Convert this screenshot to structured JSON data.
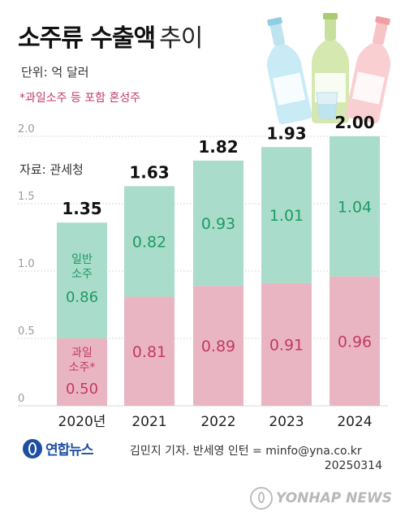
{
  "header": {
    "title_bold": "소주류 수출액",
    "title_light": "추이",
    "unit": "단위: 억 달러",
    "note": "*과일소주 등 포함 혼성주",
    "source": "자료: 관세청"
  },
  "chart_data": {
    "type": "bar",
    "stacked": true,
    "categories": [
      "2020년",
      "2021",
      "2022",
      "2023",
      "2024"
    ],
    "series": [
      {
        "name": "과일 소주*",
        "values": [
          0.5,
          0.81,
          0.89,
          0.91,
          0.96
        ],
        "color": "#eab5c3",
        "label_color": "#c23a66"
      },
      {
        "name": "일반 소주",
        "values": [
          0.86,
          0.82,
          0.93,
          1.01,
          1.04
        ],
        "color": "#a9dccb",
        "label_color": "#1f9a63"
      }
    ],
    "value_labels": {
      "fruit": [
        "0.50",
        "0.81",
        "0.89",
        "0.91",
        "0.96"
      ],
      "regular": [
        "0.86",
        "0.82",
        "0.93",
        "1.01",
        "1.04"
      ]
    },
    "totals": [
      "1.35",
      "1.63",
      "1.82",
      "1.93",
      "2.00"
    ],
    "y_ticks": [
      {
        "value": 0,
        "label": "0"
      },
      {
        "value": 0.5,
        "label": "0.5"
      },
      {
        "value": 1.0,
        "label": "1.0"
      },
      {
        "value": 1.5,
        "label": "1.5"
      },
      {
        "value": 2.0,
        "label": "2.0"
      }
    ],
    "ylim": [
      0,
      2.0
    ],
    "grid": true,
    "in_bar_labels": {
      "regular_line1": "일반",
      "regular_line2": "소주",
      "fruit_line1": "과일",
      "fruit_line2": "소주*"
    }
  },
  "footer": {
    "logo_text": "연합뉴스",
    "credit": "김민지 기자. 반세영 인턴 = minfo@yna.co.kr",
    "date": "20250314",
    "watermark": "YONHAP NEWS"
  },
  "colors": {
    "fruit": "#eab5c3",
    "regular": "#a9dccb",
    "fruit_text": "#c23a66",
    "regular_text": "#1f9a63",
    "grid": "#d9d9d9"
  }
}
